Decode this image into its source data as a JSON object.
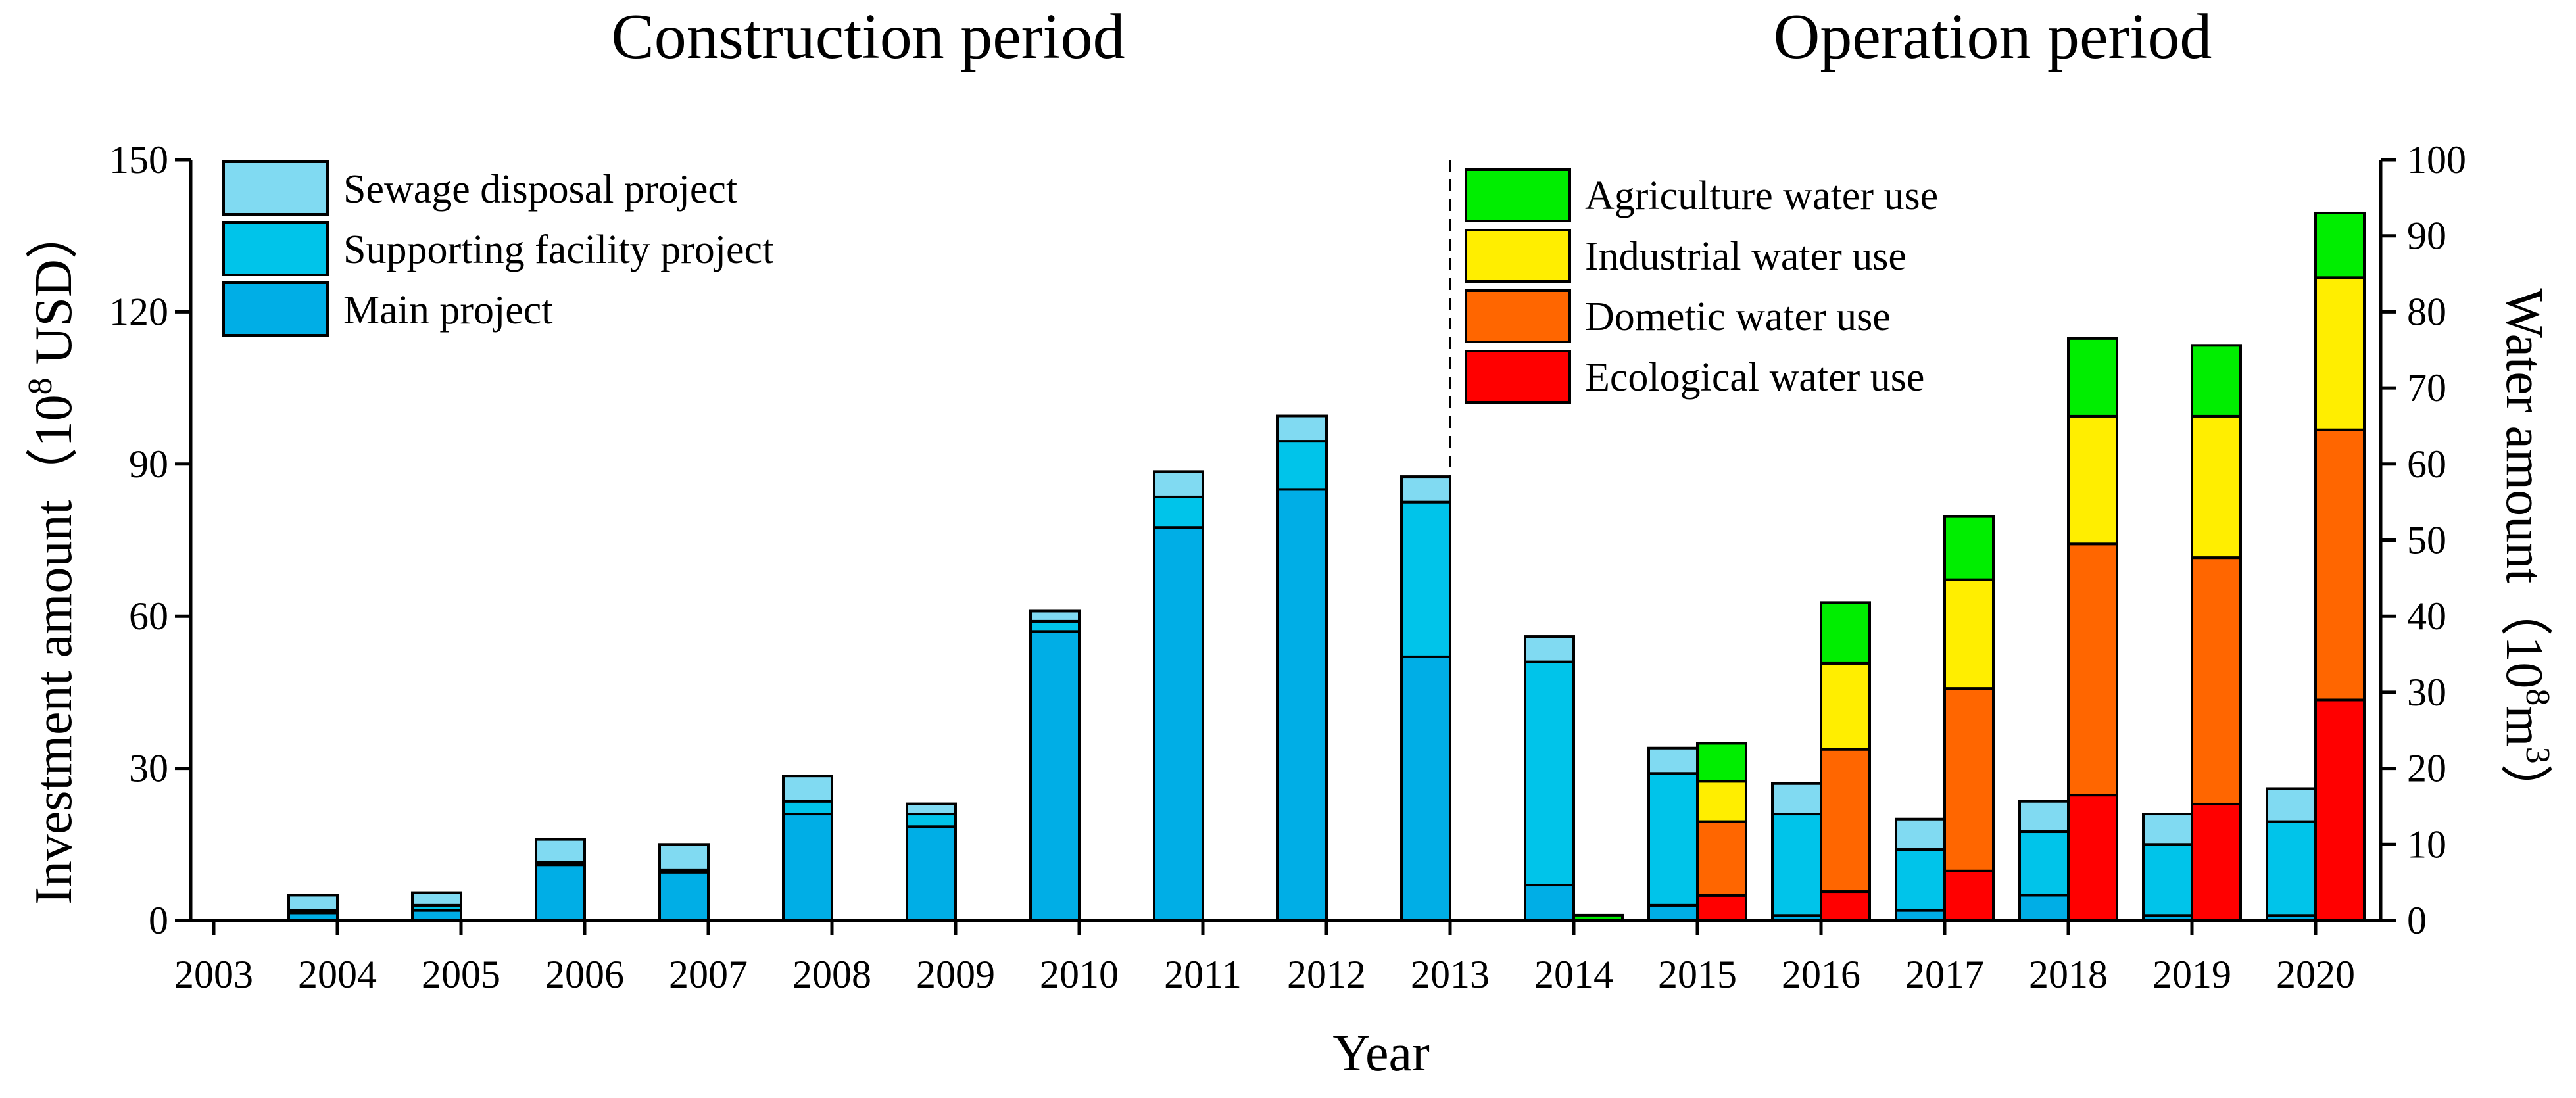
{
  "chart_data": {
    "type": "bar",
    "subtype": "stacked",
    "period_titles": [
      "Construction period",
      "Operation period"
    ],
    "xlabel": "Year",
    "categories": [
      "2003",
      "2004",
      "2005",
      "2006",
      "2007",
      "2008",
      "2009",
      "2010",
      "2011",
      "2012",
      "2013",
      "2014",
      "2015",
      "2016",
      "2017",
      "2018",
      "2019",
      "2020"
    ],
    "y_left": {
      "label_main": "Investment amount",
      "label_unit": "（10",
      "label_sup": "8",
      "label_unit_end": " USD）",
      "ylim": [
        0,
        150
      ],
      "ticks": [
        "0",
        "30",
        "60",
        "90",
        "120",
        "150"
      ]
    },
    "y_right": {
      "label_main": "Water amount",
      "label_unit": "（10",
      "label_sup": "8",
      "label_unit_mid": "m",
      "label_sup2": "3",
      "label_unit_end": "）",
      "ylim": [
        0,
        100
      ],
      "ticks": [
        "0",
        "10",
        "20",
        "30",
        "40",
        "50",
        "60",
        "70",
        "80",
        "90",
        "100"
      ]
    },
    "divider_between": [
      "2013",
      "2014"
    ],
    "investment_series": [
      {
        "name": "Main project",
        "color": "#00aee6",
        "values": [
          0,
          1.5,
          2,
          11,
          9.5,
          21,
          18.5,
          57,
          77.5,
          85,
          52,
          7,
          3,
          1,
          2,
          5,
          1,
          1
        ]
      },
      {
        "name": "Supporting facility project",
        "color": "#00c4ea",
        "values": [
          0,
          0.5,
          1,
          0.5,
          0.5,
          2.5,
          2.5,
          2,
          6,
          9.5,
          30.5,
          44,
          26,
          20,
          12,
          12.5,
          14,
          18.5
        ]
      },
      {
        "name": "Sewage disposal project",
        "color": "#80daf2",
        "values": [
          0,
          3,
          2.5,
          4.5,
          5,
          5,
          2,
          2,
          5,
          5,
          5,
          5,
          5,
          6,
          6,
          6,
          6,
          6.5
        ]
      }
    ],
    "water_series": [
      {
        "name": "Ecological water use",
        "color": "#ff0000",
        "values": [
          0,
          0,
          0,
          0,
          0,
          0,
          0,
          0,
          0,
          0,
          0,
          0,
          3.3,
          3.8,
          6.5,
          16.5,
          15.3,
          29
        ]
      },
      {
        "name": "Dometic water use",
        "color": "#ff6600",
        "values": [
          0,
          0,
          0,
          0,
          0,
          0,
          0,
          0,
          0,
          0,
          0,
          0,
          9.7,
          18.7,
          24,
          33,
          32.4,
          35.5
        ]
      },
      {
        "name": "Industrial water use",
        "color": "#ffee00",
        "values": [
          0,
          0,
          0,
          0,
          0,
          0,
          0,
          0,
          0,
          0,
          0,
          0,
          5.3,
          11.3,
          14.3,
          16.8,
          18.6,
          20
        ]
      },
      {
        "name": "Agriculture water use",
        "color": "#00ee00",
        "values": [
          0,
          0,
          0,
          0,
          0,
          0,
          0,
          0,
          0,
          0,
          0,
          0.7,
          5,
          8,
          8.3,
          10.2,
          9.3,
          8.5
        ]
      }
    ],
    "legend_investment": [
      "Sewage disposal project",
      "Supporting facility project",
      "Main project"
    ],
    "legend_water": [
      "Agriculture water use",
      "Industrial water use",
      "Dometic water use",
      "Ecological water use"
    ]
  }
}
